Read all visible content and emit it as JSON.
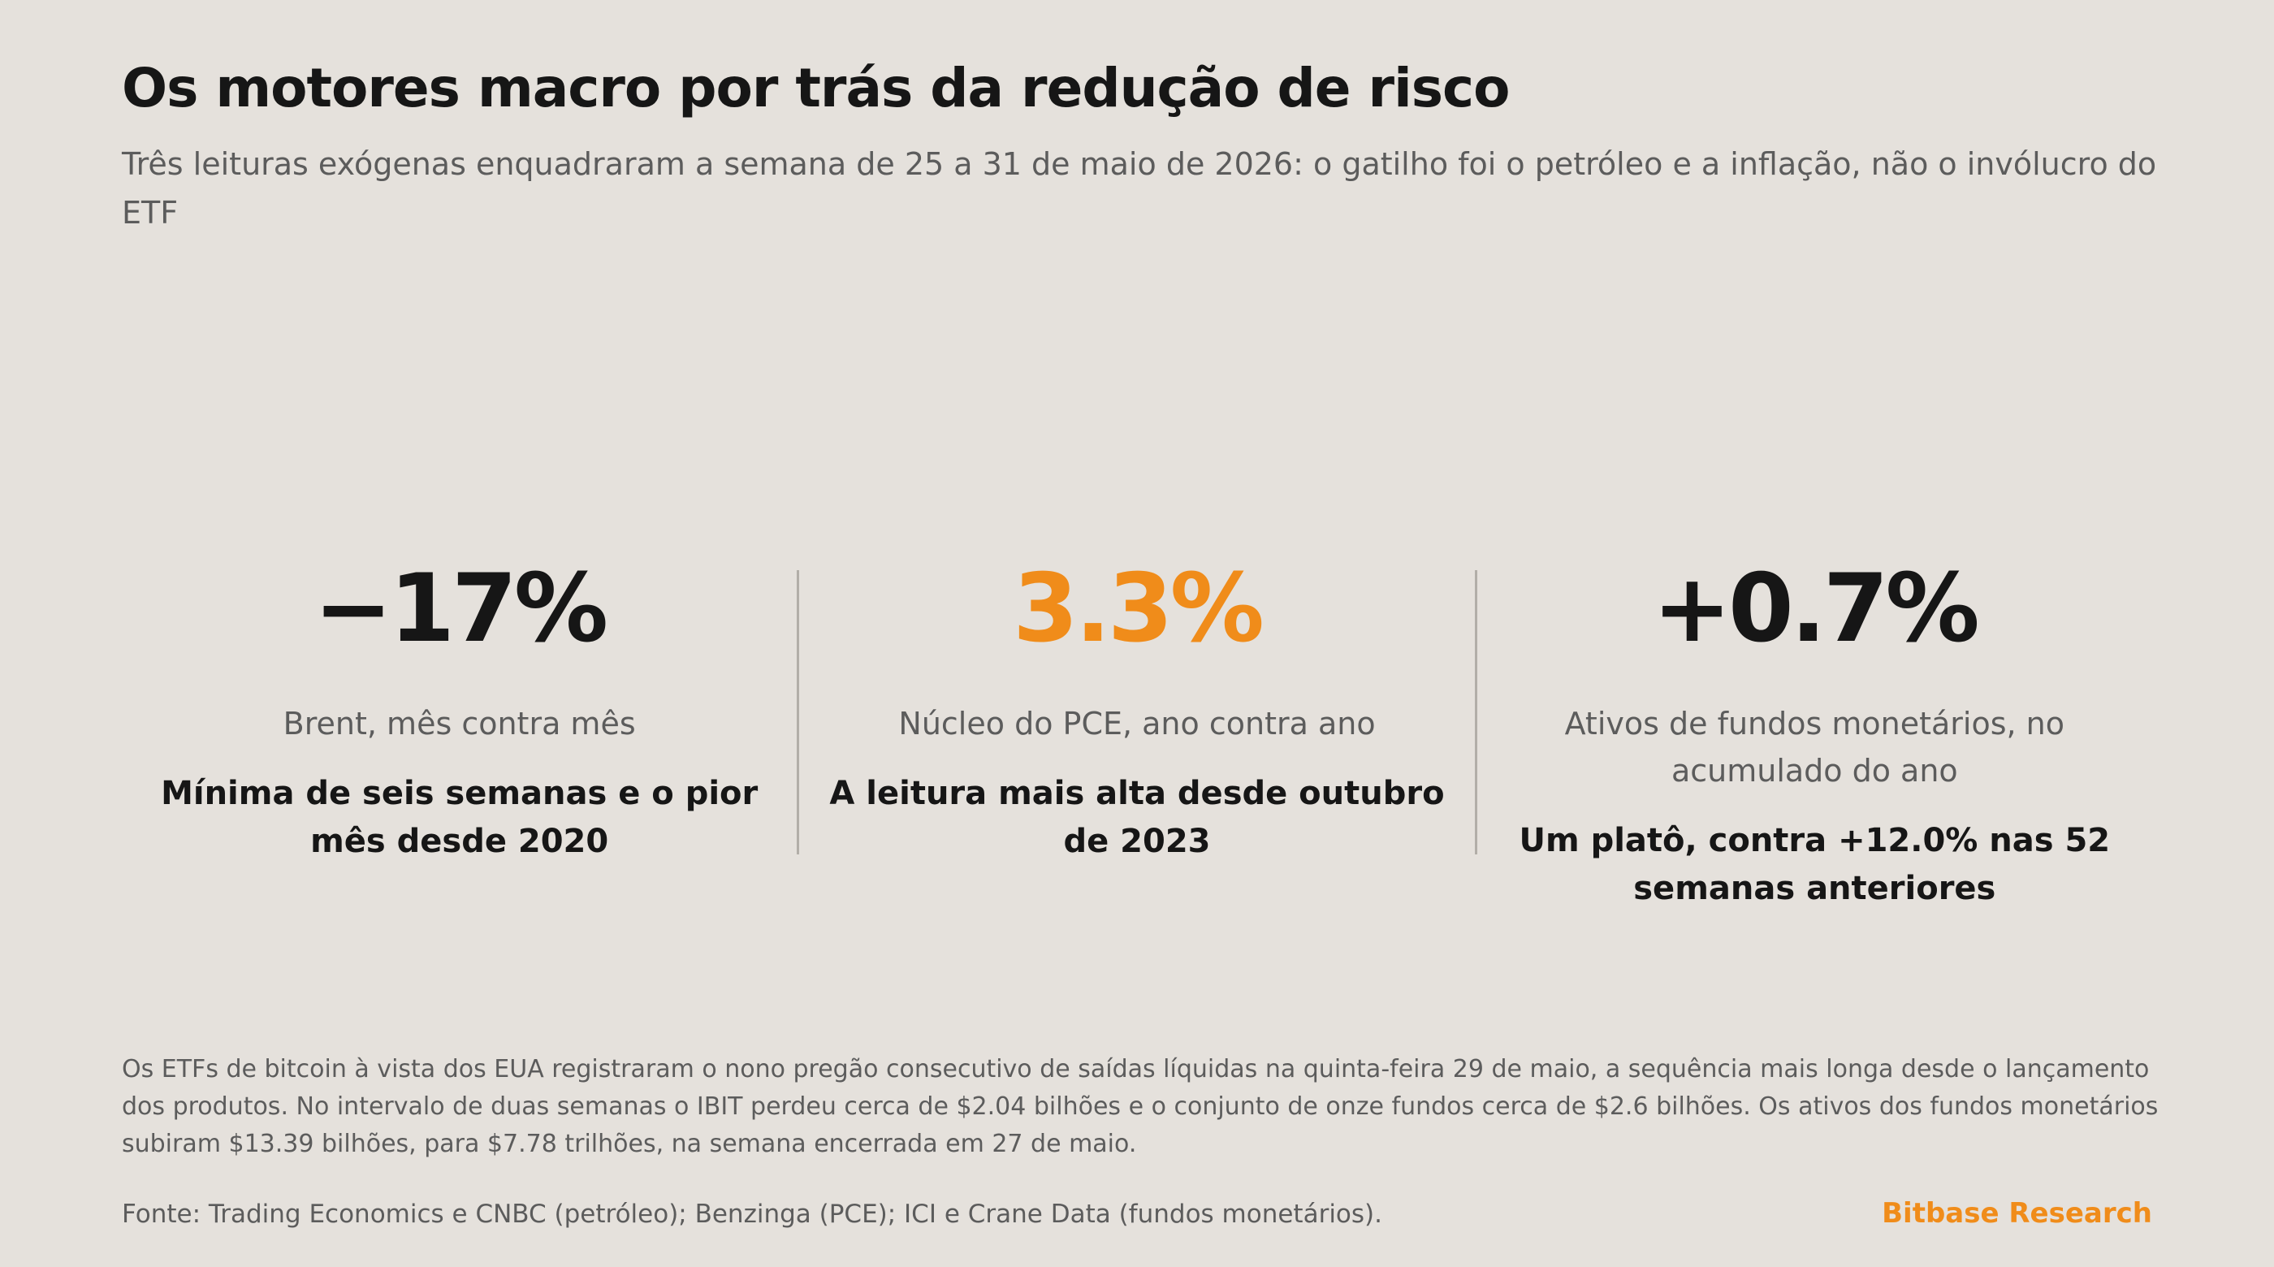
{
  "header": {
    "title": "Os motores macro por trás da redução de risco",
    "subtitle": "Três leituras exógenas enquadraram a semana de 25 a 31 de maio de 2026: o gatilho foi o petróleo e a inflação, não o invólucro do ETF"
  },
  "stats": [
    {
      "value": "−17%",
      "label": "Brent, mês contra mês",
      "note": "Mínima de seis semanas e o pior mês desde 2020"
    },
    {
      "value": "3.3%",
      "label": "Núcleo do PCE, ano contra ano",
      "note": "A leitura mais alta desde outubro de 2023"
    },
    {
      "value": "+0.7%",
      "label": "Ativos de fundos monetários, no acumulado do ano",
      "note": "Um platô, contra +12.0% nas 52 semanas anteriores"
    }
  ],
  "body": "Os ETFs de bitcoin à vista dos EUA registraram o nono pregão consecutivo de saídas líquidas na quinta-feira 29 de maio, a sequência mais longa desde o lançamento dos produtos. No intervalo de duas semanas o IBIT perdeu cerca de $2.04 bilhões e o conjunto de onze fundos cerca de $2.6 bilhões. Os ativos dos fundos monetários subiram $13.39 bilhões, para $7.78 trilhões, na semana encerrada em 27 de maio.",
  "footer": {
    "source": "Fonte: Trading Economics e CNBC (petróleo); Benzinga (PCE); ICI e Crane Data (fundos monetários).",
    "brand": "Bitbase Research"
  },
  "colors": {
    "background": "#e5e1dc",
    "text": "#161616",
    "muted": "#5c5c5c",
    "accent": "#f08c1a",
    "divider": "#b2aea8"
  }
}
